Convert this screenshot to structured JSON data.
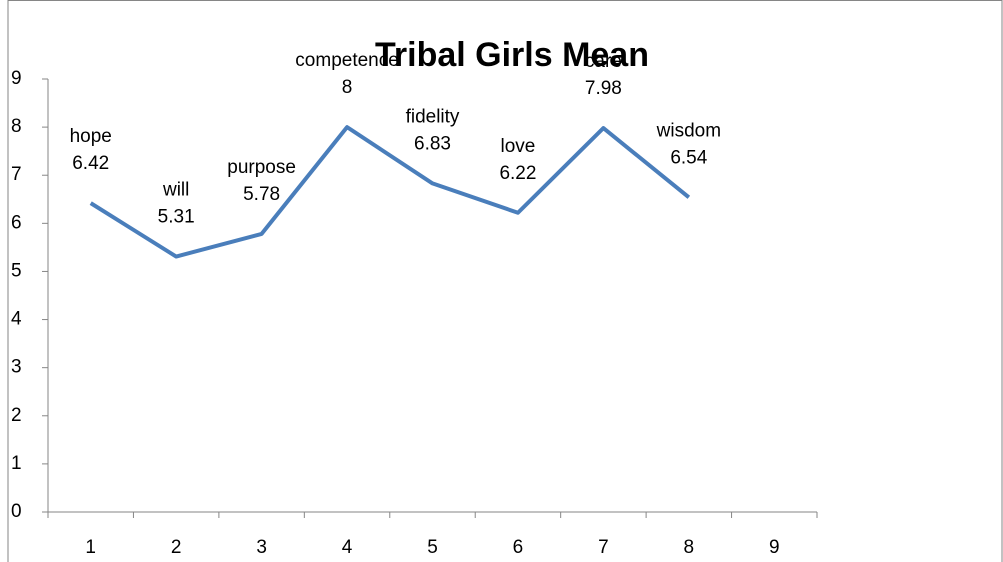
{
  "chart_data": {
    "type": "line",
    "title": "Tribal Girls Mean",
    "categories": [
      "1",
      "2",
      "3",
      "4",
      "5",
      "6",
      "7",
      "8",
      "9"
    ],
    "series": [
      {
        "name": "Mean",
        "color": "#4a7ebb",
        "values": [
          6.42,
          5.31,
          5.78,
          8,
          6.83,
          6.22,
          7.98,
          6.54,
          null
        ],
        "point_labels": [
          "hope",
          "will",
          "purpose",
          "competence",
          "fidelity",
          "love",
          "care",
          "wisdom",
          null
        ]
      }
    ],
    "ylim": [
      0,
      9
    ],
    "yticks": [
      0,
      1,
      2,
      3,
      4,
      5,
      6,
      7,
      8,
      9
    ],
    "grid": false
  }
}
